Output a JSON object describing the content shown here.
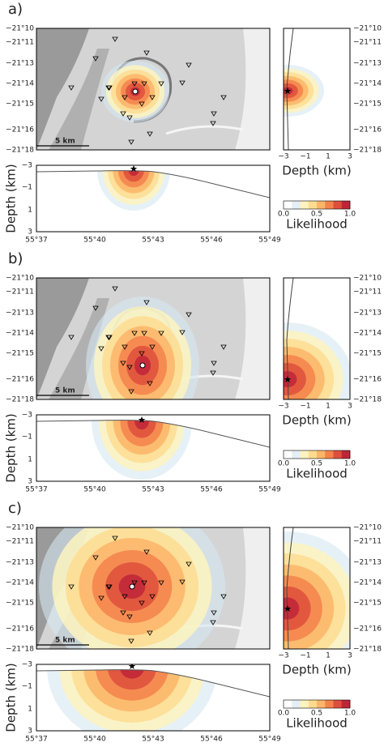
{
  "panels": [
    {
      "label": "a)"
    },
    {
      "label": "b)"
    },
    {
      "label": "c)"
    }
  ],
  "map": {
    "lat_ticks": [
      "−21°10",
      "−21°11",
      "−21°13",
      "−21°14",
      "−21°15",
      "−21°16",
      "−21°18"
    ],
    "lon_ticks": [
      "55°37",
      "55°40",
      "55°43",
      "55°46",
      "55°49"
    ],
    "scale_bar": "5 km"
  },
  "profile": {
    "depth_ticks": [
      "−3",
      "−1",
      "1",
      "3"
    ],
    "axis_label": "Depth (km)"
  },
  "side": {
    "depth_ticks": [
      "−3",
      "−1",
      "1",
      "3"
    ],
    "axis_label": "Depth (km)"
  },
  "colorbar": {
    "ticks": [
      "0.0",
      "0.5",
      "1.0"
    ],
    "label": "Likelihood"
  }
}
